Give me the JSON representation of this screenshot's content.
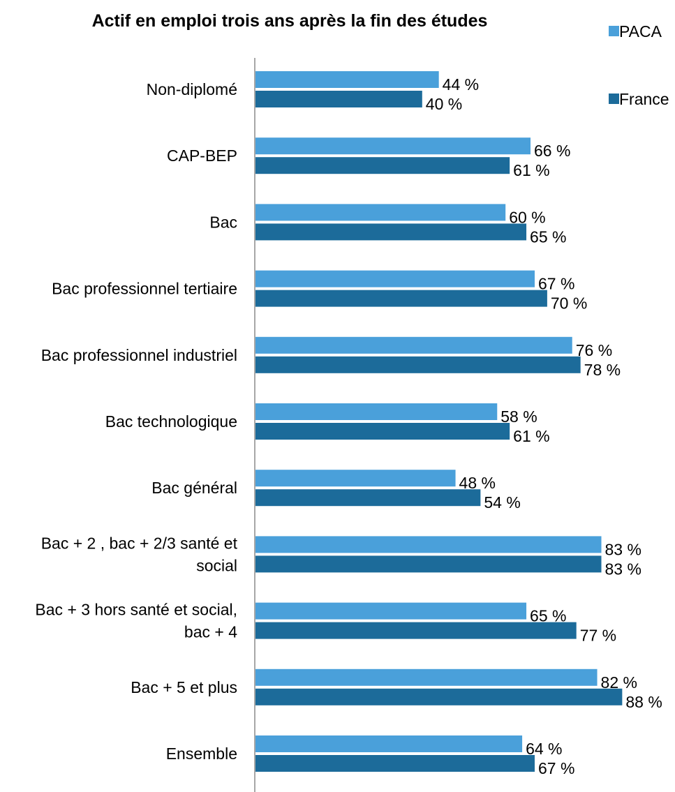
{
  "chart_data": {
    "type": "bar",
    "orientation": "horizontal",
    "title": "Actif en emploi trois ans après la fin des études",
    "categories": [
      [
        "Non-diplomé"
      ],
      [
        "CAP-BEP"
      ],
      [
        "Bac"
      ],
      [
        "Bac professionnel tertiaire"
      ],
      [
        "Bac professionnel industriel"
      ],
      [
        "Bac technologique"
      ],
      [
        "Bac général"
      ],
      [
        "Bac + 2 , bac + 2/3 santé et",
        "social"
      ],
      [
        "Bac + 3 hors santé et social,",
        "bac + 4"
      ],
      [
        "Bac + 5 et plus"
      ],
      [
        "Ensemble"
      ]
    ],
    "series": [
      {
        "name": "PACA",
        "color": "#4aa0da",
        "values": [
          44,
          66,
          60,
          67,
          76,
          58,
          48,
          83,
          65,
          82,
          64
        ],
        "labels": [
          "44 %",
          "66 %",
          "60 %",
          "67 %",
          "76 %",
          "58 %",
          "48 %",
          "83 %",
          "65 %",
          "82 %",
          "64 %"
        ]
      },
      {
        "name": "France",
        "color": "#1c6b9a",
        "values": [
          40,
          61,
          65,
          70,
          78,
          61,
          54,
          83,
          77,
          88,
          67
        ],
        "labels": [
          "40 %",
          "61 %",
          "65 %",
          "70 %",
          "78 %",
          "61 %",
          "54 %",
          "83 %",
          "77 %",
          "88 %",
          "67 %"
        ]
      }
    ],
    "xlim": [
      0,
      100
    ],
    "grid": false,
    "legend": "top-right"
  }
}
